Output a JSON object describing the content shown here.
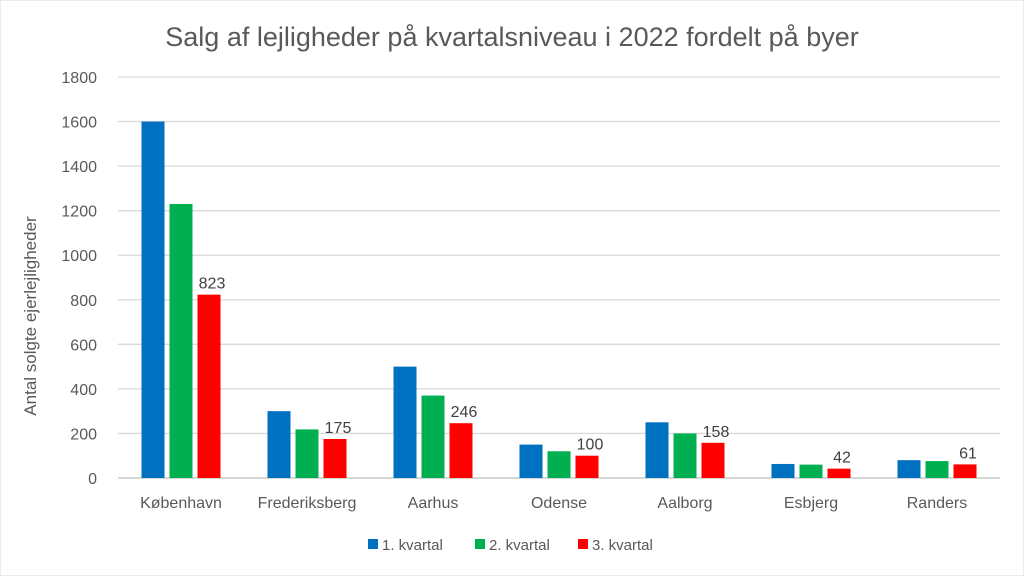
{
  "chart_data": {
    "type": "bar",
    "title": "Salg af lejligheder på kvartalsniveau i 2022 fordelt på byer",
    "xlabel": "",
    "ylabel": "Antal solgte ejerlejligheder",
    "ylim": [
      0,
      1800
    ],
    "yticks": [
      0,
      200,
      400,
      600,
      800,
      1000,
      1200,
      1400,
      1600,
      1800
    ],
    "grid": true,
    "legend_position": "bottom",
    "categories": [
      "København",
      "Frederiksberg",
      "Aarhus",
      "Odense",
      "Aalborg",
      "Esbjerg",
      "Randers"
    ],
    "series": [
      {
        "name": "1. kvartal",
        "color": "#0070C0",
        "values": [
          1600,
          300,
          500,
          150,
          250,
          63,
          80
        ],
        "labels": false
      },
      {
        "name": "2. kvartal",
        "color": "#00B050",
        "values": [
          1230,
          218,
          370,
          120,
          200,
          60,
          76
        ],
        "labels": false
      },
      {
        "name": "3. kvartal",
        "color": "#FF0000",
        "values": [
          823,
          175,
          246,
          100,
          158,
          42,
          61
        ],
        "labels": true
      }
    ]
  }
}
